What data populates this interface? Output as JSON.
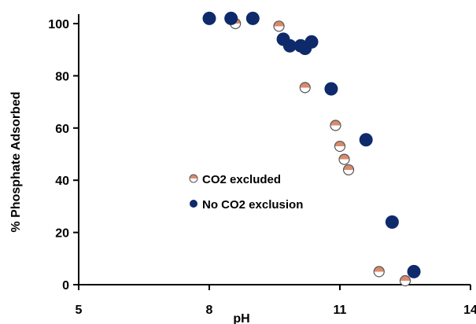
{
  "chart_data": {
    "type": "scatter",
    "title": "",
    "xlabel": "pH",
    "ylabel": "% Phosphate Adsorbed",
    "xlim": [
      5,
      14
    ],
    "ylim": [
      0,
      100
    ],
    "x_ticks": [
      5,
      8,
      11,
      14
    ],
    "y_ticks": [
      0,
      20,
      40,
      60,
      80,
      100
    ],
    "grid": false,
    "legend_position": "center-left",
    "series": [
      {
        "name": "CO2 excluded",
        "marker": "half-filled-circle",
        "color_top": "#d98a6e",
        "color_bottom": "#ffffff",
        "edge_color": "#555555",
        "points": [
          {
            "x": 8.6,
            "y": 100
          },
          {
            "x": 9.6,
            "y": 99
          },
          {
            "x": 10.2,
            "y": 75.5
          },
          {
            "x": 10.9,
            "y": 61
          },
          {
            "x": 11.0,
            "y": 53
          },
          {
            "x": 11.1,
            "y": 48
          },
          {
            "x": 11.2,
            "y": 44
          },
          {
            "x": 11.9,
            "y": 5
          },
          {
            "x": 12.5,
            "y": 1.5
          }
        ]
      },
      {
        "name": "No CO2 exclusion",
        "marker": "filled-circle",
        "color": "#0f2a6b",
        "points": [
          {
            "x": 8.0,
            "y": 102
          },
          {
            "x": 8.5,
            "y": 102
          },
          {
            "x": 9.0,
            "y": 102
          },
          {
            "x": 9.7,
            "y": 94
          },
          {
            "x": 9.85,
            "y": 91.5
          },
          {
            "x": 10.1,
            "y": 91.5
          },
          {
            "x": 10.2,
            "y": 90.5
          },
          {
            "x": 10.35,
            "y": 93
          },
          {
            "x": 10.8,
            "y": 75
          },
          {
            "x": 11.6,
            "y": 55.5
          },
          {
            "x": 12.2,
            "y": 24
          },
          {
            "x": 12.7,
            "y": 5
          }
        ]
      }
    ]
  }
}
